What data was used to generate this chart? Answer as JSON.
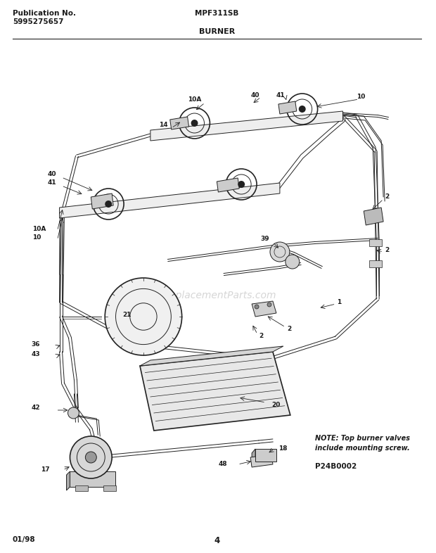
{
  "title_left_line1": "Publication No.",
  "title_left_line2": "5995275657",
  "title_center_top": "MPF311SB",
  "title_center_bottom": "BURNER",
  "note_line1": "NOTE: Top burner valves",
  "note_line2": "include mounting screw.",
  "part_number": "P24B0002",
  "page_number": "4",
  "date": "01/98",
  "bg_color": "#ffffff",
  "text_color": "#1a1a1a",
  "line_color": "#222222",
  "watermark": "eReplacementParts.com",
  "font_size_header": 7.5,
  "font_size_label": 6.5,
  "font_size_note": 7,
  "figsize": [
    6.2,
    7.86
  ],
  "dpi": 100
}
